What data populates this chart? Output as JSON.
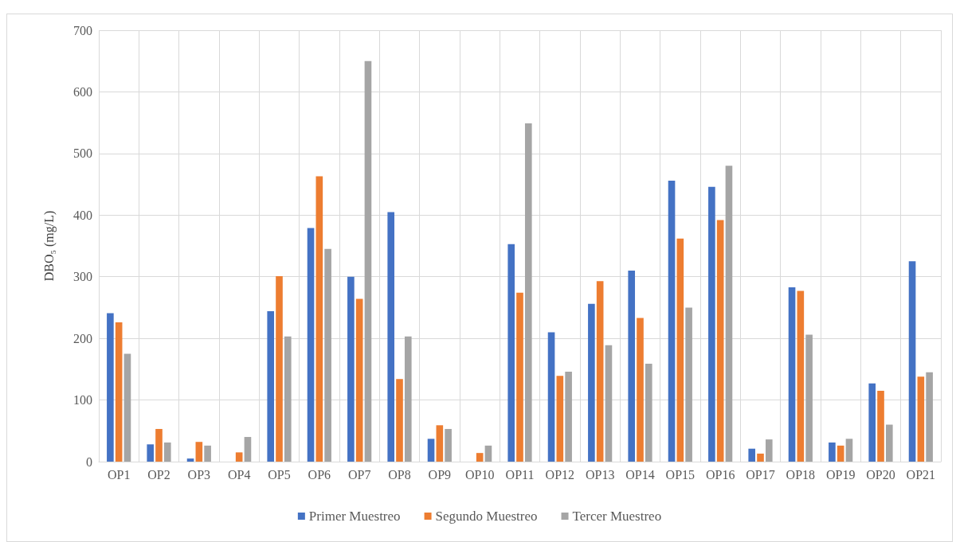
{
  "chart_data": {
    "type": "bar",
    "ylabel": "DBO₅ (mg/L)",
    "categories": [
      "OP1",
      "OP2",
      "OP3",
      "OP4",
      "OP5",
      "OP6",
      "OP7",
      "OP8",
      "OP9",
      "OP10",
      "OP11",
      "OP12",
      "OP13",
      "OP14",
      "OP15",
      "OP16",
      "OP17",
      "OP18",
      "OP19",
      "OP20",
      "OP21"
    ],
    "series": [
      {
        "name": "Primer Muestreo",
        "color": "#4472c4",
        "values": [
          241,
          28,
          5,
          null,
          244,
          379,
          300,
          405,
          37,
          null,
          353,
          210,
          256,
          310,
          456,
          446,
          21,
          283,
          31,
          127,
          325
        ]
      },
      {
        "name": "Segundo Muestreo",
        "color": "#ed7d31",
        "values": [
          226,
          53,
          32,
          15,
          301,
          463,
          264,
          134,
          59,
          14,
          274,
          139,
          293,
          233,
          362,
          392,
          13,
          277,
          26,
          115,
          138
        ]
      },
      {
        "name": "Tercer Muestreo",
        "color": "#a5a5a5",
        "values": [
          175,
          31,
          26,
          40,
          203,
          345,
          650,
          203,
          53,
          26,
          549,
          146,
          189,
          159,
          250,
          480,
          36,
          206,
          37,
          60,
          145
        ]
      }
    ],
    "ylim": [
      0,
      700
    ],
    "yticks": [
      0,
      100,
      200,
      300,
      400,
      500,
      600,
      700
    ],
    "grid": true,
    "legend": "bottom"
  }
}
